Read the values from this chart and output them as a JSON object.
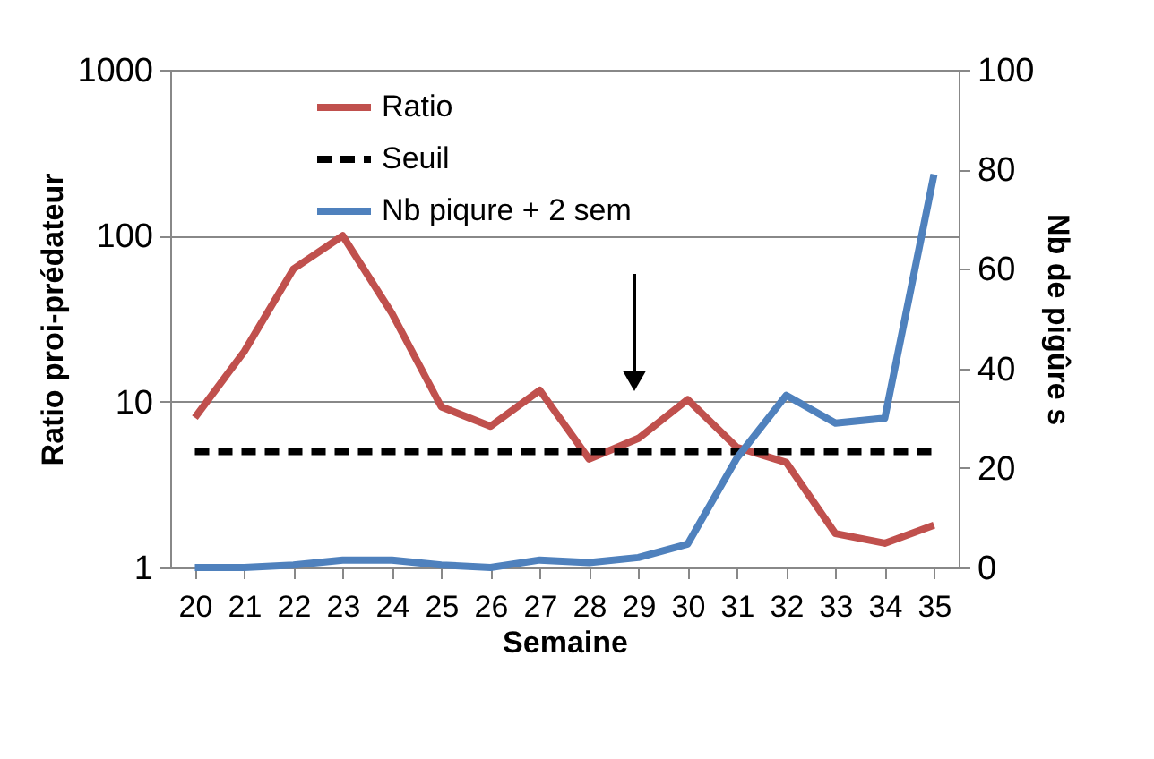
{
  "chart_data": {
    "type": "line",
    "xlabel": "Semaine",
    "ylabel": "Ratio proi-prédateur",
    "y2label": "Nb de pigûre s",
    "categories": [
      "20",
      "21",
      "22",
      "23",
      "24",
      "25",
      "26",
      "27",
      "28",
      "29",
      "30",
      "31",
      "32",
      "33",
      "34",
      "35"
    ],
    "series": [
      {
        "name": "Ratio",
        "color": "#c0504d",
        "line_style": "solid",
        "values": [
          8,
          20,
          63,
          100,
          34,
          9.3,
          7.1,
          11.7,
          4.5,
          6.0,
          10.3,
          5.3,
          4.3,
          1.6,
          1.4,
          1.8
        ]
      },
      {
        "name": "Seuil",
        "color": "#000000",
        "line_style": "dashed",
        "values": [
          5,
          5,
          5,
          5,
          5,
          5,
          5,
          5,
          5,
          5,
          5,
          5,
          5,
          5,
          5,
          5
        ]
      },
      {
        "name": "Nb piqure + 2 sem",
        "color": "#4f81bd",
        "line_style": "solid",
        "axis": "y2",
        "values": [
          0,
          0,
          0.5,
          1.5,
          1.5,
          0.5,
          0,
          1.5,
          1,
          2,
          4.7,
          22,
          34.6,
          29,
          30,
          79
        ]
      }
    ],
    "log": "y",
    "ylim": [
      1,
      1000
    ],
    "yticks": [
      1,
      10,
      100,
      {
        "value": 1000,
        "label": "1000"
      }
    ],
    "y2lim": [
      0,
      100
    ],
    "y2ticks": [
      0,
      20,
      40,
      60,
      80,
      100
    ],
    "grid": "y",
    "legend": "top",
    "marker": "none"
  }
}
